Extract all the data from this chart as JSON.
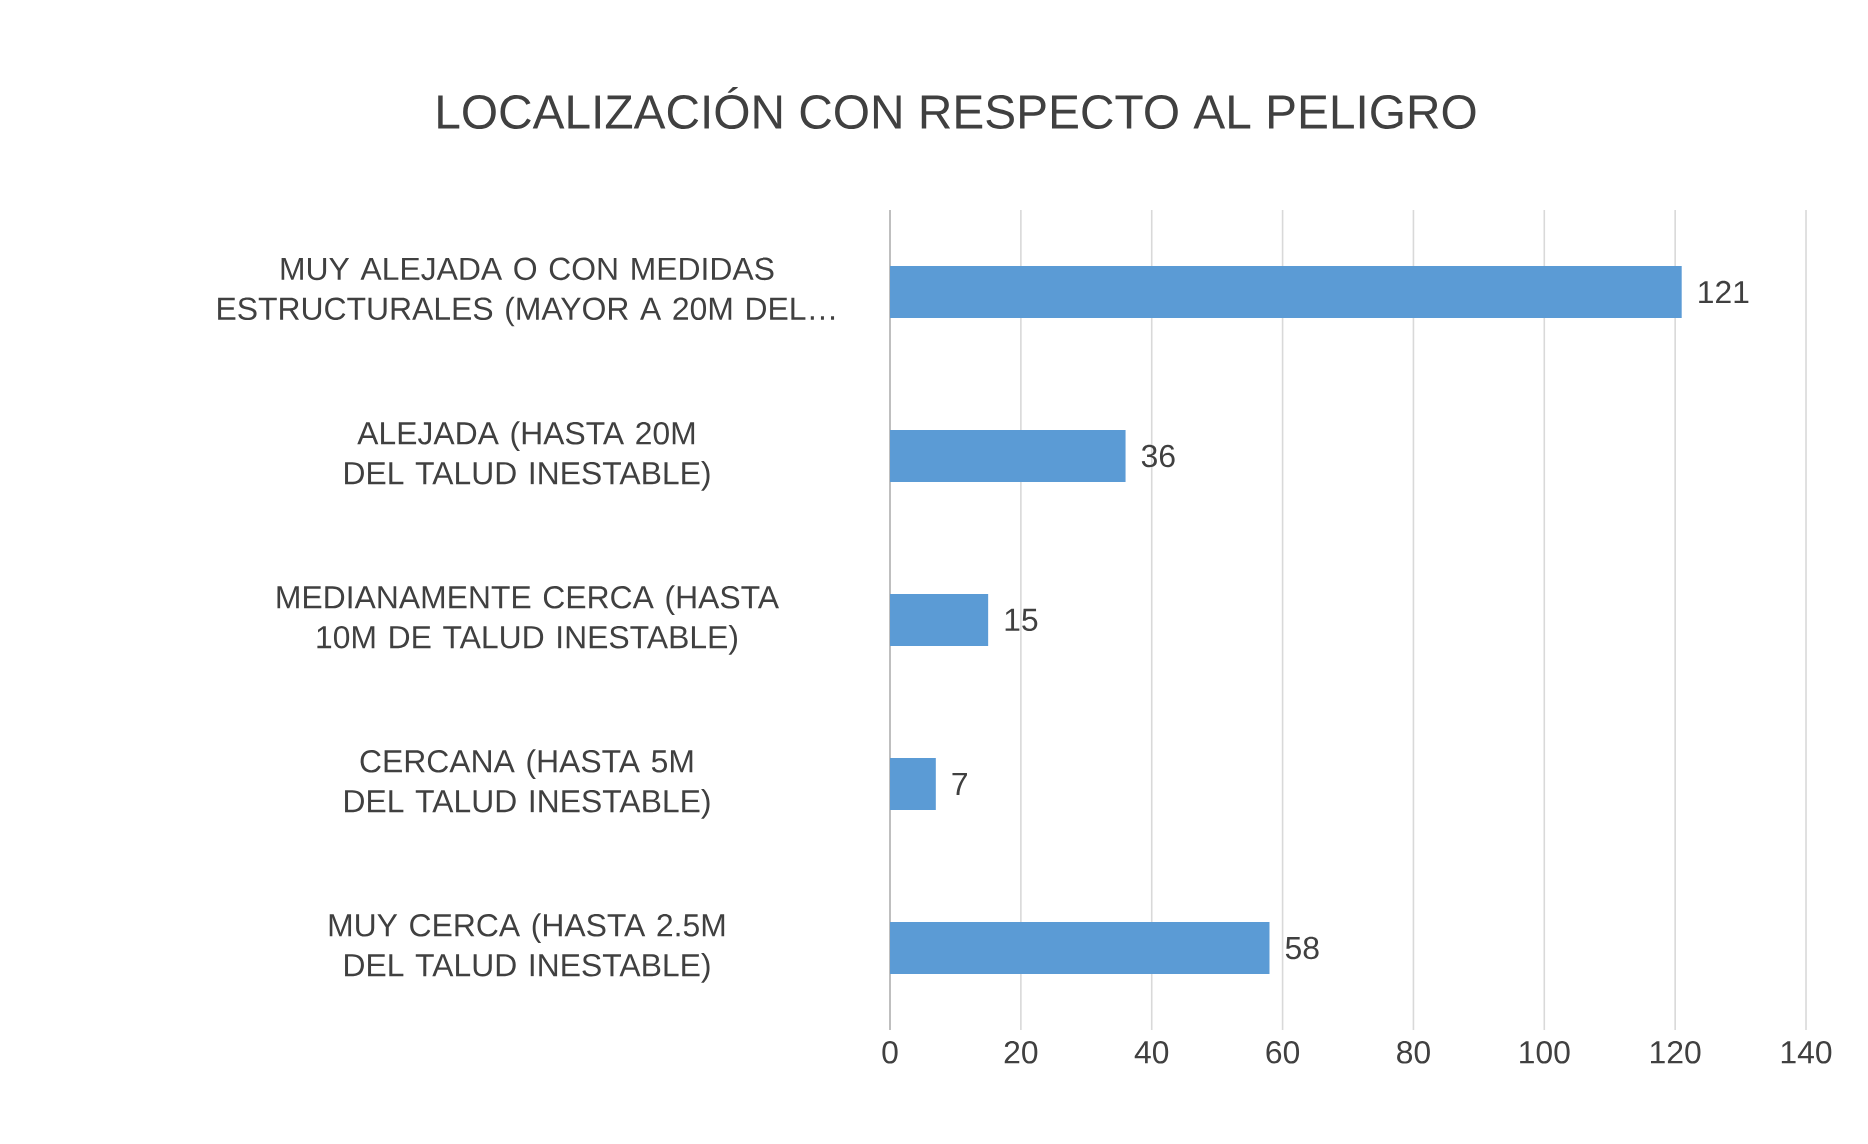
{
  "chart_data": {
    "type": "bar",
    "orientation": "horizontal",
    "title": "LOCALIZACIÓN CON RESPECTO AL PELIGRO",
    "categories": [
      "MUY ALEJADA O CON MEDIDAS ESTRUCTURALES (MAYOR A 20M DEL…",
      "ALEJADA (HASTA 20M DEL TALUD INESTABLE)",
      "MEDIANAMENTE CERCA (HASTA 10M DE TALUD INESTABLE)",
      "CERCANA (HASTA 5M DEL TALUD INESTABLE)",
      "MUY CERCA (HASTA 2.5M DEL TALUD INESTABLE)"
    ],
    "values": [
      121,
      36,
      15,
      7,
      58
    ],
    "color": "#5b9bd5",
    "xlim": [
      0,
      140
    ],
    "xticks": [
      0,
      20,
      40,
      60,
      80,
      100,
      120,
      140
    ],
    "grid": "x",
    "data_labels": true
  }
}
